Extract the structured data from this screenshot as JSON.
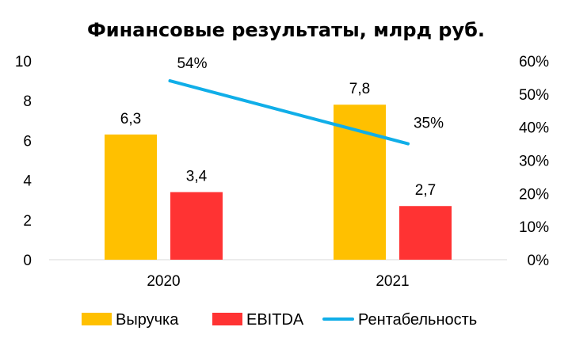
{
  "chart_data": {
    "type": "bar",
    "title": "Финансовые результаты, млрд руб.",
    "categories": [
      "2020",
      "2021"
    ],
    "series": [
      {
        "name": "Выручка",
        "kind": "bar",
        "axis": "left",
        "color": "#FFC000",
        "values": [
          6.3,
          7.8
        ],
        "labels": [
          "6,3",
          "7,8"
        ]
      },
      {
        "name": "EBITDA",
        "kind": "bar",
        "axis": "left",
        "color": "#FF3333",
        "values": [
          3.4,
          2.7
        ],
        "labels": [
          "3,4",
          "2,7"
        ]
      },
      {
        "name": "Рентабельность",
        "kind": "line",
        "axis": "right",
        "color": "#10AEE8",
        "values": [
          54,
          35
        ],
        "labels": [
          "54%",
          "35%"
        ]
      }
    ],
    "y_left": {
      "min": 0,
      "max": 10,
      "ticks": [
        "0",
        "2",
        "4",
        "6",
        "8",
        "10"
      ]
    },
    "y_right": {
      "min": 0,
      "max": 60,
      "ticks": [
        "0%",
        "10%",
        "20%",
        "30%",
        "40%",
        "50%",
        "60%"
      ]
    },
    "grid": false,
    "legend_position": "bottom"
  }
}
